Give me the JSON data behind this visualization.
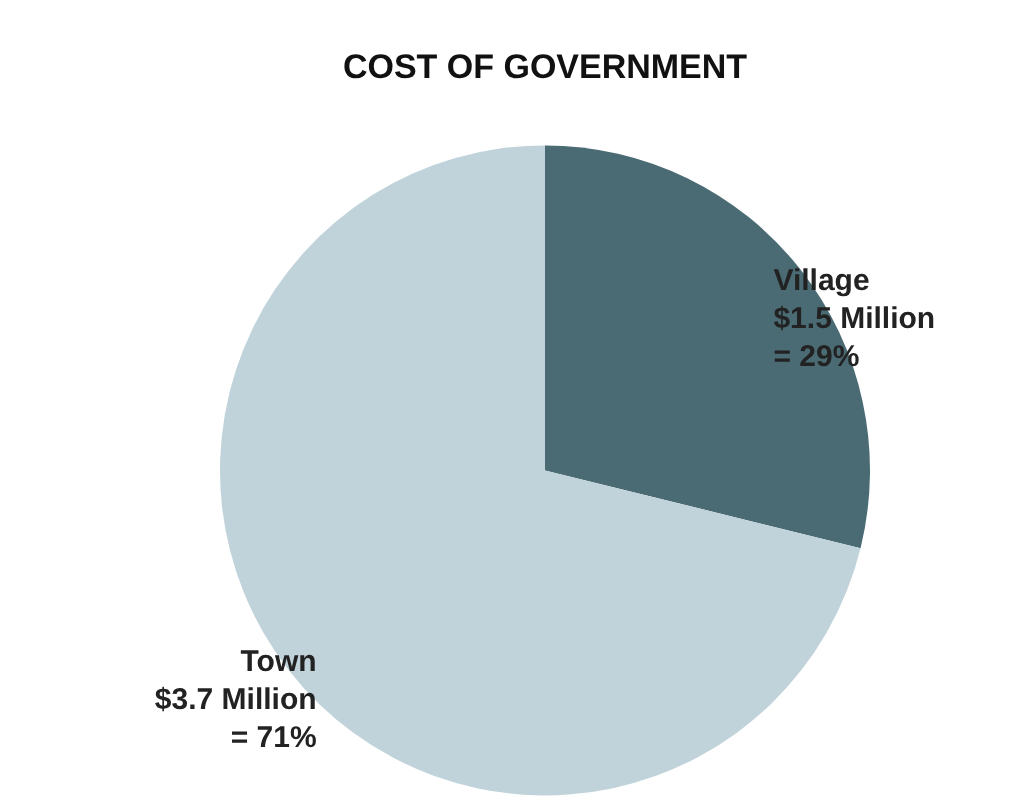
{
  "chart_data": {
    "type": "pie",
    "title": "COST OF GOVERNMENT",
    "categories": [
      "Village",
      "Town"
    ],
    "values": [
      1.5,
      3.7
    ],
    "value_labels": [
      "$1.5 Million\n= 29%",
      "$3.7 Million\n= 71%"
    ],
    "colors": [
      "#4a6b74",
      "#c0d3da"
    ]
  }
}
